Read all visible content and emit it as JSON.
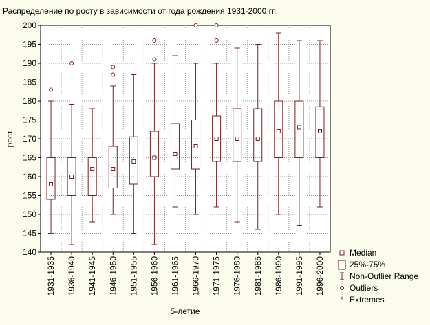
{
  "chart_data": {
    "type": "boxplot",
    "title": "Распределение по росту в зависимости от года рождения 1931-2000 гг.",
    "xlabel": "5-летие",
    "ylabel": "рост",
    "ylim": [
      140,
      200
    ],
    "yticks": [
      140,
      145,
      150,
      155,
      160,
      165,
      170,
      175,
      180,
      185,
      190,
      195,
      200
    ],
    "grid": true,
    "legend_position": "bottom-right",
    "colors": {
      "background": "#fcfcec",
      "plot_background": "#ffffff",
      "box": "#7a1f1f",
      "grid": "#999999"
    },
    "categories": [
      "1931-1935",
      "1936-1940",
      "1941-1945",
      "1946-1950",
      "1951-1955",
      "1956-1960",
      "1961-1965",
      "1966-1970",
      "1971-1975",
      "1976-1980",
      "1981-1985",
      "1986-1990",
      "1991-1995",
      "1996-2000"
    ],
    "series": [
      {
        "min": 145,
        "q1": 154,
        "median": 158,
        "q3": 165,
        "max": 180,
        "outliers": [
          183
        ]
      },
      {
        "min": 142,
        "q1": 155,
        "median": 160,
        "q3": 165,
        "max": 179,
        "outliers": [
          190
        ]
      },
      {
        "min": 148,
        "q1": 155,
        "median": 162,
        "q3": 165,
        "max": 178,
        "outliers": []
      },
      {
        "min": 150,
        "q1": 157,
        "median": 162,
        "q3": 168,
        "max": 184,
        "outliers": [
          187,
          189
        ]
      },
      {
        "min": 145,
        "q1": 158,
        "median": 164,
        "q3": 170.5,
        "max": 187,
        "outliers": []
      },
      {
        "min": 142,
        "q1": 160,
        "median": 165,
        "q3": 172,
        "max": 190,
        "outliers": [
          191,
          196
        ]
      },
      {
        "min": 152,
        "q1": 162,
        "median": 166,
        "q3": 174,
        "max": 192,
        "outliers": []
      },
      {
        "min": 150,
        "q1": 162,
        "median": 168,
        "q3": 175,
        "max": 190,
        "outliers": [
          200
        ]
      },
      {
        "min": 152,
        "q1": 164,
        "median": 170,
        "q3": 176,
        "max": 190,
        "outliers": [
          196,
          200
        ]
      },
      {
        "min": 148,
        "q1": 164,
        "median": 170,
        "q3": 178,
        "max": 194,
        "outliers": []
      },
      {
        "min": 146,
        "q1": 164,
        "median": 170,
        "q3": 178,
        "max": 195,
        "outliers": []
      },
      {
        "min": 150,
        "q1": 165,
        "median": 172,
        "q3": 180,
        "max": 198,
        "outliers": []
      },
      {
        "min": 147,
        "q1": 165,
        "median": 173,
        "q3": 180,
        "max": 196,
        "outliers": []
      },
      {
        "min": 152,
        "q1": 165,
        "median": 172,
        "q3": 178.5,
        "max": 196,
        "outliers": []
      }
    ],
    "legend": [
      {
        "symbol": "median",
        "label": "Median"
      },
      {
        "symbol": "box",
        "label": "25%-75%"
      },
      {
        "symbol": "whisker",
        "label": "Non-Outlier Range"
      },
      {
        "symbol": "outlier",
        "label": "Outliers"
      },
      {
        "symbol": "extreme",
        "label": "Extremes"
      }
    ]
  }
}
